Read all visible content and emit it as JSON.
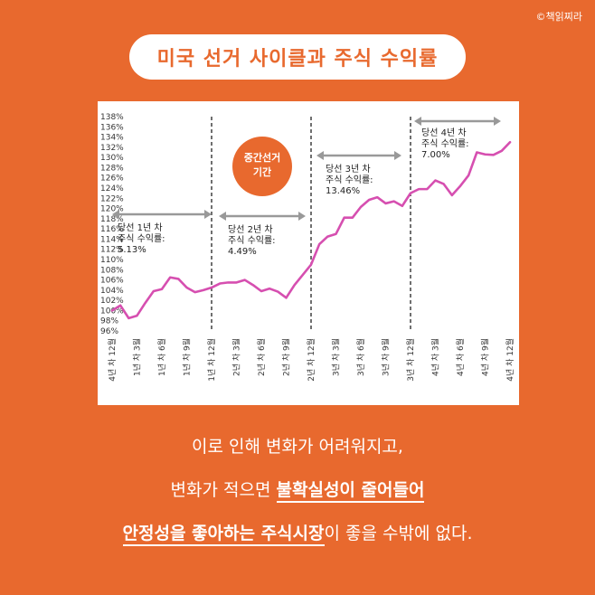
{
  "copyright": "©책읽찌라",
  "title": "미국 선거 사이클과 주식 수익률",
  "chart_data": {
    "type": "line",
    "line_color": "#D64FB0",
    "accent_color": "#E8692E",
    "ylim": [
      96,
      138
    ],
    "y_ticks": [
      "138%",
      "136%",
      "134%",
      "132%",
      "130%",
      "128%",
      "126%",
      "124%",
      "122%",
      "120%",
      "118%",
      "116%",
      "114%",
      "112%",
      "110%",
      "108%",
      "106%",
      "104%",
      "102%",
      "100%",
      "98%",
      "96%"
    ],
    "x_ticks": [
      "4년 차 12월",
      "1년 차 3월",
      "1년 차 6월",
      "1년 차 9월",
      "1년 차 12월",
      "2년 차 3월",
      "2년 차 6월",
      "2년 차 9월",
      "2년 차 12월",
      "3년 차 3월",
      "3년 차 6월",
      "3년 차 9월",
      "3년 차 12월",
      "4년 차 3월",
      "4년 차 6월",
      "4년 차 9월",
      "4년 차 12월"
    ],
    "values": [
      100,
      101,
      98.5,
      99,
      101.5,
      103.8,
      104.2,
      106.5,
      106.2,
      104.5,
      103.6,
      104,
      104.5,
      105.3,
      105.5,
      105.5,
      106,
      105,
      103.8,
      104.3,
      103.7,
      102.5,
      105,
      107,
      109,
      113,
      114.5,
      115,
      118.2,
      118.2,
      120.3,
      121.7,
      122.2,
      121,
      121.4,
      120.5,
      123,
      123.8,
      123.8,
      125.5,
      124.8,
      122.6,
      124.4,
      126.5,
      131,
      130.6,
      130.5,
      131.3,
      133
    ],
    "phases": [
      {
        "label": "당선 1년 차",
        "sub": "주식 수익률:",
        "value": "5.13%"
      },
      {
        "label": "당선 2년 차",
        "sub": "주식 수익률:",
        "value": "4.49%"
      },
      {
        "label": "당선 3년 차",
        "sub": "주식 수익률:",
        "value": "13.46%"
      },
      {
        "label": "당선 4년 차",
        "sub": "주식 수익률:",
        "value": "7.00%"
      }
    ],
    "bubble": {
      "line1": "중간선거",
      "line2": "기간"
    }
  },
  "bottom": {
    "line1": "이로 인해 변화가 어려워지고,",
    "line2_a": "변화가 적으면 ",
    "line2_b": "불확실성이 줄어들어",
    "line3_a": "안정성을 좋아하는 주식시장",
    "line3_b": "이 좋을 수밖에 없다."
  }
}
